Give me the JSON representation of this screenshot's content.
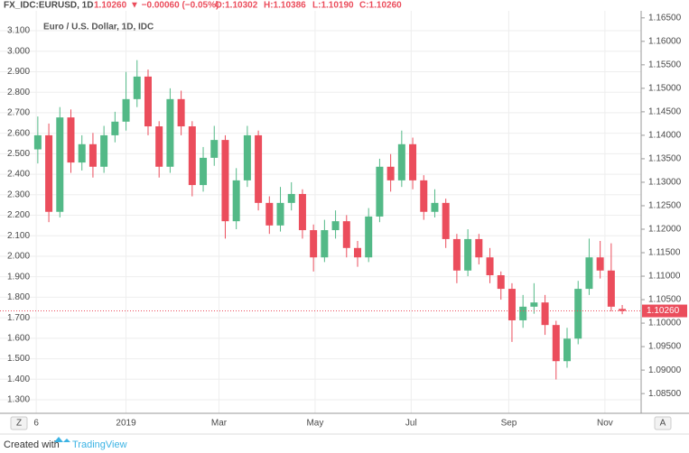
{
  "header": {
    "symbol": "FX_IDC:EURUSD, 1D",
    "last": "1.10260",
    "change": "▼ −0.00060 (−0.05%)",
    "open": "O:1.10302",
    "high": "H:1.10386",
    "low": "L:1.10190",
    "close": "C:1.10260"
  },
  "controls": [
    "Z",
    "A"
  ],
  "footer": {
    "created": "Created with",
    "brand": "TradingView"
  },
  "chart_data": {
    "type": "candlestick",
    "legend": "Euro / U.S. Dollar, 1D, IDC",
    "up_color": "#53b987",
    "down_color": "#eb4d5c",
    "grid": true,
    "xlim": [
      -80,
      327
    ],
    "xticks": [
      {
        "value": -57,
        "label": "6"
      },
      {
        "value": 0,
        "label": "2019"
      },
      {
        "value": 59,
        "label": "Mar"
      },
      {
        "value": 120,
        "label": "May"
      },
      {
        "value": 181,
        "label": "Jul"
      },
      {
        "value": 243,
        "label": "Sep"
      },
      {
        "value": 304,
        "label": "Nov"
      }
    ],
    "ylim": [
      1.234,
      3.197
    ],
    "yticks": [
      {
        "value": 1.3,
        "label": "1.300"
      },
      {
        "value": 1.4,
        "label": "1.400"
      },
      {
        "value": 1.5,
        "label": "1.500"
      },
      {
        "value": 1.6,
        "label": "1.600"
      },
      {
        "value": 1.7,
        "label": "1.700"
      },
      {
        "value": 1.8,
        "label": "1.800"
      },
      {
        "value": 1.9,
        "label": "1.900"
      },
      {
        "value": 2.0,
        "label": "2.000"
      },
      {
        "value": 2.1,
        "label": "2.100"
      },
      {
        "value": 2.2,
        "label": "2.200"
      },
      {
        "value": 2.3,
        "label": "2.300"
      },
      {
        "value": 2.4,
        "label": "2.400"
      },
      {
        "value": 2.5,
        "label": "2.500"
      },
      {
        "value": 2.6,
        "label": "2.600"
      },
      {
        "value": 2.7,
        "label": "2.700"
      },
      {
        "value": 2.8,
        "label": "2.800"
      },
      {
        "value": 2.9,
        "label": "2.900"
      },
      {
        "value": 3.0,
        "label": "3.000"
      },
      {
        "value": 3.1,
        "label": "3.100"
      }
    ],
    "y2lim": [
      1.0808,
      1.1665
    ],
    "y2ticks": [
      {
        "value": 1.085,
        "label": "1.08500"
      },
      {
        "value": 1.09,
        "label": "1.09000"
      },
      {
        "value": 1.095,
        "label": "1.09500"
      },
      {
        "value": 1.1,
        "label": "1.10000"
      },
      {
        "value": 1.105,
        "label": "1.10500"
      },
      {
        "value": 1.11,
        "label": "1.11000"
      },
      {
        "value": 1.115,
        "label": "1.11500"
      },
      {
        "value": 1.12,
        "label": "1.12000"
      },
      {
        "value": 1.125,
        "label": "1.12500"
      },
      {
        "value": 1.13,
        "label": "1.13000"
      },
      {
        "value": 1.135,
        "label": "1.13500"
      },
      {
        "value": 1.14,
        "label": "1.14000"
      },
      {
        "value": 1.145,
        "label": "1.14500"
      },
      {
        "value": 1.15,
        "label": "1.15000"
      },
      {
        "value": 1.155,
        "label": "1.15500"
      },
      {
        "value": 1.16,
        "label": "1.16000"
      },
      {
        "value": 1.165,
        "label": "1.16500"
      }
    ],
    "series": [
      {
        "name": "Euro / U.S. Dollar, 1D, IDC",
        "axis": "y2",
        "x": [
          -56,
          -49,
          -42,
          -35,
          -28,
          -21,
          -14,
          -7,
          0,
          7,
          14,
          21,
          28,
          35,
          42,
          49,
          56,
          63,
          70,
          77,
          84,
          91,
          98,
          105,
          112,
          119,
          126,
          133,
          140,
          147,
          154,
          161,
          168,
          175,
          182,
          189,
          196,
          203,
          210,
          217,
          224,
          231,
          238,
          245,
          252,
          259,
          266,
          273,
          280,
          287,
          294,
          301,
          308,
          315
        ],
        "open": [
          1.137,
          1.14,
          1.1237,
          1.1438,
          1.1342,
          1.1381,
          1.1333,
          1.14,
          1.1429,
          1.1477,
          1.1525,
          1.1419,
          1.1333,
          1.1477,
          1.1419,
          1.1294,
          1.1352,
          1.139,
          1.1217,
          1.1304,
          1.14,
          1.1256,
          1.1208,
          1.1256,
          1.1275,
          1.1198,
          1.114,
          1.1198,
          1.1217,
          1.116,
          1.114,
          1.1227,
          1.1333,
          1.1304,
          1.1381,
          1.1304,
          1.1237,
          1.1256,
          1.1179,
          1.1112,
          1.1179,
          1.114,
          1.1102,
          1.1073,
          1.1006,
          1.1035,
          1.1044,
          1.0996,
          1.0919,
          1.0967,
          1.1073,
          1.114,
          1.1112,
          1.10302
        ],
        "high": [
          1.144,
          1.1425,
          1.146,
          1.1455,
          1.14,
          1.1405,
          1.142,
          1.145,
          1.1535,
          1.156,
          1.154,
          1.143,
          1.15,
          1.1495,
          1.143,
          1.1375,
          1.142,
          1.14,
          1.133,
          1.142,
          1.141,
          1.127,
          1.129,
          1.13,
          1.1285,
          1.121,
          1.122,
          1.124,
          1.123,
          1.1175,
          1.1245,
          1.135,
          1.136,
          1.141,
          1.1395,
          1.1315,
          1.1285,
          1.1265,
          1.119,
          1.12,
          1.119,
          1.116,
          1.111,
          1.1085,
          1.106,
          1.1085,
          1.106,
          1.1005,
          1.099,
          1.109,
          1.118,
          1.1175,
          1.117,
          1.10386
        ],
        "low": [
          1.134,
          1.1215,
          1.1225,
          1.132,
          1.1325,
          1.131,
          1.132,
          1.1385,
          1.141,
          1.146,
          1.14,
          1.131,
          1.132,
          1.14,
          1.127,
          1.128,
          1.1335,
          1.118,
          1.12,
          1.129,
          1.124,
          1.119,
          1.1195,
          1.124,
          1.118,
          1.111,
          1.113,
          1.118,
          1.114,
          1.112,
          1.113,
          1.1215,
          1.128,
          1.129,
          1.1285,
          1.122,
          1.1225,
          1.116,
          1.1085,
          1.11,
          1.1125,
          1.1085,
          1.105,
          1.096,
          1.099,
          1.102,
          1.0975,
          1.088,
          1.0905,
          1.0955,
          1.106,
          1.1095,
          1.1025,
          1.1019
        ],
        "close": [
          1.14,
          1.1237,
          1.1438,
          1.1342,
          1.1381,
          1.1333,
          1.14,
          1.1429,
          1.1477,
          1.1525,
          1.1419,
          1.1333,
          1.1477,
          1.1419,
          1.1294,
          1.1352,
          1.139,
          1.1217,
          1.1304,
          1.14,
          1.1256,
          1.1208,
          1.1256,
          1.1275,
          1.1198,
          1.114,
          1.1198,
          1.1217,
          1.116,
          1.114,
          1.1227,
          1.1333,
          1.1304,
          1.1381,
          1.1304,
          1.1237,
          1.1256,
          1.1179,
          1.1112,
          1.1179,
          1.114,
          1.1102,
          1.1073,
          1.1006,
          1.1035,
          1.1044,
          1.0996,
          1.0919,
          1.0967,
          1.1073,
          1.114,
          1.1112,
          1.1035,
          1.1026
        ]
      }
    ]
  }
}
